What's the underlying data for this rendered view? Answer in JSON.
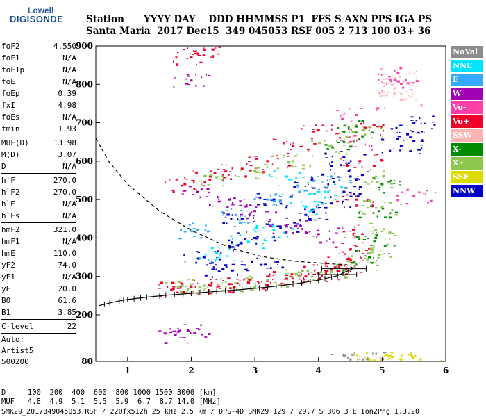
{
  "logo": {
    "line1": "Lowell",
    "line2": "DIGISONDE"
  },
  "header": {
    "row1": "Station      YYYY DAY    DDD HHMMSS P1  FFS S AXN PPS IGA PS",
    "row2": "Santa Maria  2017 Dec15  349 045053 RSF 005 2 713 100 03+ 36"
  },
  "params": [
    [
      {
        "k": "foF2",
        "v": "4.550"
      },
      {
        "k": "foF1",
        "v": "N/A"
      },
      {
        "k": "foF1p",
        "v": "N/A"
      },
      {
        "k": "foE",
        "v": "N/A"
      },
      {
        "k": "foEp",
        "v": "0.39"
      },
      {
        "k": "fxI",
        "v": "4.98"
      },
      {
        "k": "foEs",
        "v": "N/A"
      },
      {
        "k": "fmin",
        "v": "1.93"
      }
    ],
    [
      {
        "k": "MUF(D)",
        "v": "13.98"
      },
      {
        "k": "M(D)",
        "v": "3.07"
      },
      {
        "k": "D",
        "v": "N/A"
      }
    ],
    [
      {
        "k": "h`F",
        "v": "270.0"
      },
      {
        "k": "h`F2",
        "v": "270.0"
      },
      {
        "k": "h`E",
        "v": "N/A"
      },
      {
        "k": "h`Es",
        "v": "N/A"
      }
    ],
    [
      {
        "k": "hmF2",
        "v": "321.0"
      },
      {
        "k": "hmF1",
        "v": "N/A"
      },
      {
        "k": "hmE",
        "v": "110.0"
      },
      {
        "k": "yF2",
        "v": "74.0"
      },
      {
        "k": "yF1",
        "v": "N/A"
      },
      {
        "k": "yE",
        "v": "20.0"
      },
      {
        "k": "B0",
        "v": "61.6"
      },
      {
        "k": "B1",
        "v": "3.85"
      }
    ],
    [
      {
        "k": "C-level",
        "v": "22"
      }
    ]
  ],
  "auto": {
    "line1": "Auto:",
    "line2": "Artist5",
    "line3": "500200"
  },
  "legend": [
    {
      "label": "NoVal",
      "color": "#8c8c8c"
    },
    {
      "label": "NNE",
      "color": "#00e5ff"
    },
    {
      "label": "E",
      "color": "#33aaff"
    },
    {
      "label": "W",
      "color": "#a000b4"
    },
    {
      "label": "Vo-",
      "color": "#ff3fa8"
    },
    {
      "label": "Vo+",
      "color": "#f00028"
    },
    {
      "label": "SSW",
      "color": "#ffb4b4"
    },
    {
      "label": "X-",
      "color": "#008c00"
    },
    {
      "label": "X+",
      "color": "#8cc84b"
    },
    {
      "label": "SSE",
      "color": "#dcdc00"
    },
    {
      "label": "NNW",
      "color": "#0000c8"
    }
  ],
  "footer": {
    "line1": "D     100  200  400  600  800 1000 1500 3000 [km]",
    "line2": "MUF   4.8  4.9  5.1  5.5  5.9  6.7  8.7 14.0 [MHz]",
    "line3": "SMK29_2017349045053.RSF / 220fx512h 25 kHz 2.5 km / DPS-4D SMK29 129 / 29.7 S 306.3 E Ion2Png 1.3.20"
  },
  "chart_data": {
    "type": "scatter",
    "title": "",
    "xlabel": "",
    "ylabel": "",
    "xlim": [
      0.5,
      6.0
    ],
    "ylim": [
      80,
      900
    ],
    "xticks": [
      1,
      2,
      3,
      4,
      5,
      6
    ],
    "yticks": [
      80,
      200,
      300,
      400,
      500,
      600,
      700,
      800,
      900
    ],
    "grid": false,
    "legend_position": "right",
    "series": [
      {
        "name": "Vo+",
        "color": "#f00028",
        "points": [
          [
            1.72,
            268
          ],
          [
            2.0,
            272
          ],
          [
            2.3,
            276
          ],
          [
            2.6,
            280
          ],
          [
            2.9,
            284
          ],
          [
            3.2,
            288
          ],
          [
            3.5,
            294
          ],
          [
            3.8,
            300
          ],
          [
            4.0,
            308
          ],
          [
            4.2,
            318
          ],
          [
            4.35,
            330
          ],
          [
            4.45,
            345
          ],
          [
            4.5,
            370
          ],
          [
            4.55,
            420
          ],
          [
            4.6,
            500
          ],
          [
            4.65,
            600
          ],
          [
            4.7,
            680
          ],
          [
            1.9,
            540
          ],
          [
            2.3,
            560
          ],
          [
            2.8,
            580
          ],
          [
            3.2,
            600
          ],
          [
            3.6,
            640
          ],
          [
            4.0,
            680
          ],
          [
            2.0,
            870
          ],
          [
            2.1,
            880
          ]
        ]
      },
      {
        "name": "X+",
        "color": "#8cc84b",
        "points": [
          [
            1.8,
            272
          ],
          [
            2.2,
            276
          ],
          [
            2.7,
            282
          ],
          [
            3.2,
            290
          ],
          [
            3.7,
            300
          ],
          [
            4.2,
            312
          ],
          [
            4.6,
            330
          ],
          [
            4.8,
            360
          ],
          [
            4.9,
            420
          ],
          [
            5.0,
            480
          ],
          [
            5.02,
            560
          ],
          [
            2.4,
            558
          ],
          [
            3.0,
            575
          ],
          [
            3.6,
            600
          ],
          [
            4.2,
            640
          ],
          [
            4.7,
            680
          ]
        ]
      },
      {
        "name": "X-",
        "color": "#008c00",
        "points": [
          [
            4.8,
            350
          ],
          [
            4.9,
            400
          ],
          [
            4.95,
            470
          ],
          [
            5.0,
            540
          ],
          [
            4.6,
            690
          ],
          [
            4.4,
            650
          ]
        ]
      },
      {
        "name": "NNW",
        "color": "#0000c8",
        "points": [
          [
            2.2,
            350
          ],
          [
            2.6,
            380
          ],
          [
            3.0,
            400
          ],
          [
            3.4,
            430
          ],
          [
            3.8,
            460
          ],
          [
            4.2,
            490
          ],
          [
            4.4,
            520
          ],
          [
            2.8,
            450
          ],
          [
            3.3,
            500
          ],
          [
            3.9,
            550
          ],
          [
            4.4,
            610
          ],
          [
            4.5,
            560
          ],
          [
            5.3,
            640
          ],
          [
            5.4,
            670
          ],
          [
            5.5,
            700
          ],
          [
            2.5,
            320
          ],
          [
            3.1,
            330
          ]
        ]
      },
      {
        "name": "NNE",
        "color": "#00e5ff",
        "points": [
          [
            2.4,
            360
          ],
          [
            2.9,
            390
          ],
          [
            3.3,
            420
          ],
          [
            3.8,
            480
          ],
          [
            4.1,
            520
          ],
          [
            3.5,
            560
          ]
        ]
      },
      {
        "name": "E",
        "color": "#33aaff",
        "points": [
          [
            2.1,
            420
          ],
          [
            2.7,
            460
          ],
          [
            3.2,
            500
          ],
          [
            3.7,
            520
          ],
          [
            4.2,
            560
          ]
        ]
      },
      {
        "name": "W",
        "color": "#a000b4",
        "points": [
          [
            2.1,
            520
          ],
          [
            2.6,
            500
          ],
          [
            3.0,
            470
          ],
          [
            3.5,
            430
          ],
          [
            4.0,
            410
          ],
          [
            1.75,
            148
          ],
          [
            1.95,
            158
          ],
          [
            2.0,
            810
          ]
        ]
      },
      {
        "name": "Vo-",
        "color": "#ff3fa8",
        "points": [
          [
            4.5,
            650
          ],
          [
            4.6,
            720
          ],
          [
            5.25,
            830
          ],
          [
            5.3,
            800
          ],
          [
            5.5,
            510
          ]
        ]
      },
      {
        "name": "SSW",
        "color": "#ffb4b4",
        "points": [
          [
            5.2,
            790
          ],
          [
            5.28,
            820
          ],
          [
            5.3,
            760
          ]
        ]
      },
      {
        "name": "SSE",
        "color": "#dcdc00",
        "points": [
          [
            4.8,
            85
          ],
          [
            5.0,
            85
          ],
          [
            5.3,
            85
          ],
          [
            5.6,
            85
          ]
        ]
      },
      {
        "name": "NoVal",
        "color": "#8c8c8c",
        "points": [
          [
            4.5,
            85
          ],
          [
            4.7,
            85
          ]
        ]
      }
    ],
    "profile_curve": {
      "color": "#000000",
      "points": [
        [
          0.55,
          224
        ],
        [
          0.8,
          234
        ],
        [
          1.0,
          240
        ],
        [
          1.3,
          246
        ],
        [
          1.6,
          251
        ],
        [
          2.0,
          256
        ],
        [
          2.4,
          261
        ],
        [
          2.8,
          266
        ],
        [
          3.2,
          272
        ],
        [
          3.6,
          280
        ],
        [
          4.0,
          290
        ],
        [
          4.3,
          302
        ],
        [
          4.55,
          321
        ],
        [
          4.45,
          330
        ],
        [
          4.0,
          335
        ],
        [
          3.6,
          340
        ],
        [
          3.1,
          352
        ],
        [
          2.6,
          375
        ],
        [
          2.0,
          420
        ],
        [
          1.5,
          470
        ],
        [
          1.0,
          540
        ],
        [
          0.7,
          600
        ],
        [
          0.5,
          660
        ]
      ]
    }
  }
}
